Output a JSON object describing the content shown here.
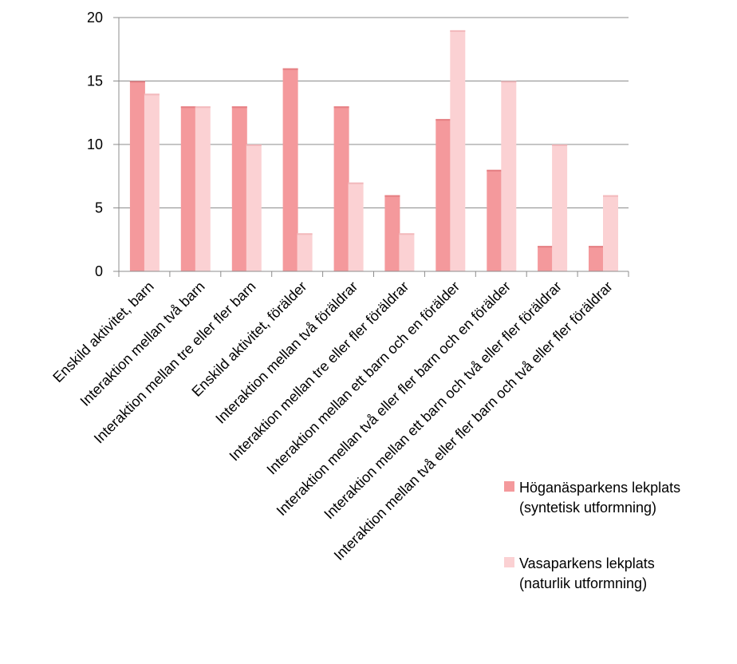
{
  "chart_data": {
    "type": "bar",
    "categories": [
      "Enskild aktivitet, barn",
      "Interaktion mellan två barn",
      "Interaktion mellan tre eller fler barn",
      "Enskild aktivitet, förälder",
      "Interaktion mellan två föräldrar",
      "Interaktion mellan tre eller fler föräldrar",
      "Interaktion mellan ett barn och en förälder",
      "Interaktion mellan två eller fler barn och en förälder",
      "Interaktion mellan ett barn och två eller fler föräldrar",
      "Interaktion mellan två eller fler barn och två eller fler föräldrar"
    ],
    "series": [
      {
        "name_lines": [
          "Höganäsparkens lekplats",
          "(syntetisk utformning)"
        ],
        "color": "#f4999c",
        "values": [
          15,
          13,
          13,
          16,
          13,
          6,
          12,
          8,
          2,
          2
        ]
      },
      {
        "name_lines": [
          "Vasaparkens lekplats",
          "(naturlik utformning)"
        ],
        "color": "#fbd1d3",
        "values": [
          14,
          13,
          10,
          3,
          7,
          3,
          19,
          15,
          10,
          6
        ]
      }
    ],
    "ylim": [
      0,
      20
    ],
    "yticks": [
      0,
      5,
      10,
      15,
      20
    ],
    "grid": true,
    "legend_position": "bottom-right"
  }
}
